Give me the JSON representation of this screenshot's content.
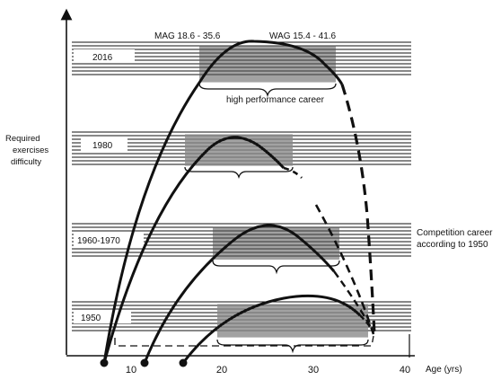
{
  "axes": {
    "y_label_lines": [
      "Required",
      "exercises",
      "difficulty"
    ],
    "x_label": "Age (yrs)",
    "x_ticks": [
      "10",
      "20",
      "30",
      "40"
    ]
  },
  "eras": [
    "2016",
    "1980",
    "1960-1970",
    "1950"
  ],
  "ranges": {
    "mag": "MAG 18.6 - 35.6",
    "wag": "WAG 15.4 - 41.6"
  },
  "annotations": {
    "high_performance": "high performance career",
    "competition_lines": [
      "Competition career",
      "according to 1950"
    ]
  },
  "colors": {
    "ink": "#111111",
    "band": "#9a9a9a",
    "background": "#ffffff"
  }
}
